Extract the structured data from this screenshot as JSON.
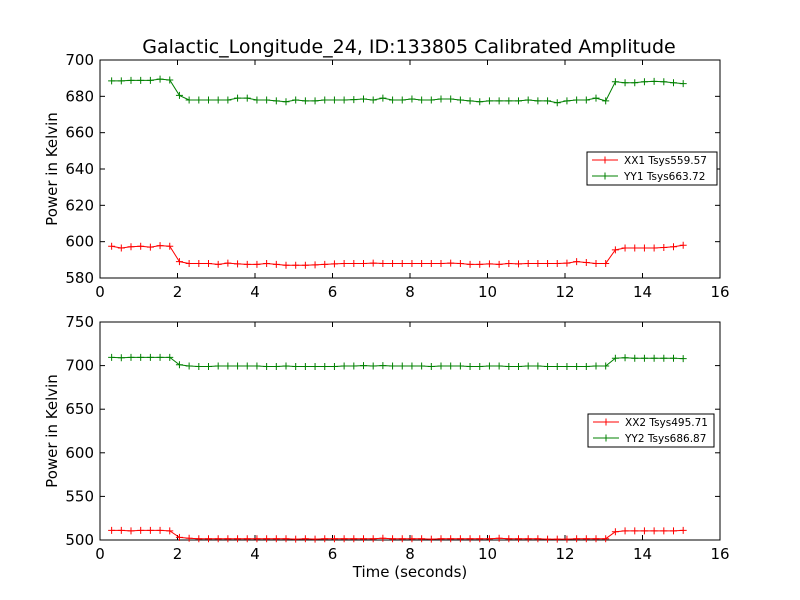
{
  "chart_data": [
    {
      "type": "line",
      "title": "Galactic_Longitude_24, ID:133805 Calibrated Amplitude",
      "xlabel": "",
      "ylabel": "Power in Kelvin",
      "xlim": [
        0,
        16
      ],
      "ylim": [
        580,
        700
      ],
      "xticks": [
        0,
        2,
        4,
        6,
        8,
        10,
        12,
        14,
        16
      ],
      "yticks": [
        580,
        600,
        620,
        640,
        660,
        680,
        700
      ],
      "grid": false,
      "legend_position": "right",
      "x": [
        0.3,
        0.55,
        0.8,
        1.05,
        1.3,
        1.55,
        1.8,
        2.05,
        2.3,
        2.55,
        2.8,
        3.05,
        3.3,
        3.55,
        3.8,
        4.05,
        4.3,
        4.55,
        4.8,
        5.05,
        5.3,
        5.55,
        5.8,
        6.05,
        6.3,
        6.55,
        6.8,
        7.05,
        7.3,
        7.55,
        7.8,
        8.05,
        8.3,
        8.55,
        8.8,
        9.05,
        9.3,
        9.55,
        9.8,
        10.05,
        10.3,
        10.55,
        10.8,
        11.05,
        11.3,
        11.55,
        11.8,
        12.05,
        12.3,
        12.55,
        12.8,
        13.05,
        13.3,
        13.55,
        13.8,
        14.05,
        14.3,
        14.55,
        14.8,
        15.05
      ],
      "series": [
        {
          "name": "XX1 Tsys559.57",
          "color": "#ff0000",
          "values": [
            597.5,
            596.5,
            597.2,
            597.5,
            597.0,
            597.8,
            597.5,
            589.0,
            588.0,
            588.0,
            588.0,
            587.5,
            588.2,
            587.8,
            587.5,
            587.5,
            588.0,
            587.5,
            587.0,
            587.0,
            587.0,
            587.2,
            587.5,
            587.8,
            588.0,
            588.0,
            588.0,
            588.2,
            588.0,
            588.0,
            588.0,
            588.0,
            588.0,
            588.0,
            588.0,
            588.2,
            588.0,
            587.5,
            587.5,
            587.8,
            587.5,
            588.0,
            587.8,
            588.0,
            588.0,
            588.0,
            588.0,
            588.2,
            589.0,
            588.5,
            588.0,
            588.0,
            595.5,
            596.5,
            596.5,
            596.5,
            596.5,
            596.8,
            597.2,
            598.0
          ]
        },
        {
          "name": "YY1 Tsys663.72",
          "color": "#008000",
          "values": [
            688.5,
            688.5,
            688.8,
            688.8,
            688.8,
            689.5,
            689.0,
            680.5,
            678.0,
            678.0,
            678.0,
            678.0,
            678.0,
            679.0,
            679.0,
            678.0,
            678.0,
            677.5,
            677.0,
            678.0,
            677.5,
            677.5,
            678.0,
            678.0,
            678.0,
            678.2,
            678.5,
            678.0,
            679.0,
            678.0,
            678.0,
            678.5,
            678.0,
            678.0,
            678.5,
            678.5,
            678.0,
            677.5,
            677.0,
            677.5,
            677.5,
            677.5,
            677.5,
            678.0,
            677.5,
            677.5,
            676.5,
            677.5,
            678.0,
            678.0,
            679.0,
            677.5,
            688.0,
            687.5,
            687.5,
            688.0,
            688.2,
            688.0,
            687.5,
            687.0
          ]
        }
      ]
    },
    {
      "type": "line",
      "title": "",
      "xlabel": "Time (seconds)",
      "ylabel": "Power in Kelvin",
      "xlim": [
        0,
        16
      ],
      "ylim": [
        500,
        750
      ],
      "xticks": [
        0,
        2,
        4,
        6,
        8,
        10,
        12,
        14,
        16
      ],
      "yticks": [
        500,
        550,
        600,
        650,
        700,
        750
      ],
      "grid": false,
      "legend_position": "right",
      "x": [
        0.3,
        0.55,
        0.8,
        1.05,
        1.3,
        1.55,
        1.8,
        2.05,
        2.3,
        2.55,
        2.8,
        3.05,
        3.3,
        3.55,
        3.8,
        4.05,
        4.3,
        4.55,
        4.8,
        5.05,
        5.3,
        5.55,
        5.8,
        6.05,
        6.3,
        6.55,
        6.8,
        7.05,
        7.3,
        7.55,
        7.8,
        8.05,
        8.3,
        8.55,
        8.8,
        9.05,
        9.3,
        9.55,
        9.8,
        10.05,
        10.3,
        10.55,
        10.8,
        11.05,
        11.3,
        11.55,
        11.8,
        12.05,
        12.3,
        12.55,
        12.8,
        13.05,
        13.3,
        13.55,
        13.8,
        14.05,
        14.3,
        14.55,
        14.8,
        15.05
      ],
      "series": [
        {
          "name": "XX2 Tsys495.71",
          "color": "#ff0000",
          "values": [
            511,
            511,
            510.5,
            511,
            511,
            511,
            510.5,
            503,
            502,
            501.5,
            501.5,
            501.5,
            501.5,
            501.5,
            501.5,
            501.5,
            501.5,
            501.5,
            501.5,
            501,
            501.5,
            501,
            501.5,
            501.5,
            501.5,
            501.5,
            501.5,
            501.5,
            502,
            501.5,
            501.5,
            501.5,
            501.5,
            501,
            501.5,
            501.5,
            501.5,
            501.5,
            501.5,
            501.5,
            502,
            501.5,
            501.5,
            501.5,
            501.5,
            501,
            501,
            501,
            501.5,
            501.5,
            501.5,
            501.5,
            509.5,
            510.5,
            510.5,
            510.5,
            510.5,
            510.5,
            510.5,
            511
          ]
        },
        {
          "name": "YY2 Tsys686.87",
          "color": "#008000",
          "values": [
            709.5,
            709,
            709.5,
            709.5,
            709.5,
            709.5,
            709.5,
            701,
            699.5,
            699,
            699,
            699.5,
            699.5,
            699.5,
            699.5,
            699.5,
            699,
            699,
            699.5,
            699,
            699,
            699,
            699,
            699,
            699.5,
            699.5,
            700,
            699.5,
            700,
            699.5,
            699.5,
            699.5,
            699.5,
            699,
            699.5,
            699.5,
            699.5,
            699,
            699,
            699.5,
            699.5,
            699,
            699,
            699.5,
            699.5,
            699,
            699,
            699,
            699,
            699,
            699.5,
            699.5,
            708.5,
            709,
            708.5,
            708.5,
            708.5,
            708.5,
            708.5,
            708
          ]
        }
      ]
    }
  ]
}
